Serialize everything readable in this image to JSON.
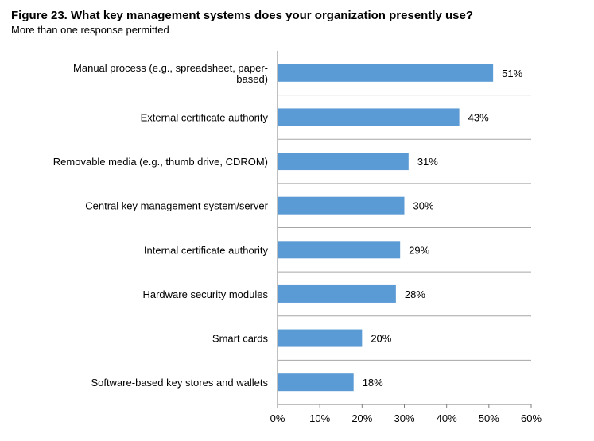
{
  "title": "Figure 23. What key management systems does your organization presently use?",
  "subtitle": "More than one response permitted",
  "colors": {
    "bar": "#5b9bd5",
    "gridline": "#a6a6a6",
    "axis": "#7f7f7f"
  },
  "chart_data": {
    "type": "bar",
    "orientation": "horizontal",
    "categories": [
      [
        "Manual process (e.g., spreadsheet, paper-",
        "based)"
      ],
      [
        "External certificate authority"
      ],
      [
        "Removable media (e.g., thumb drive, CDROM)"
      ],
      [
        "Central key management system/server"
      ],
      [
        "Internal certificate authority"
      ],
      [
        "Hardware security modules"
      ],
      [
        "Smart cards"
      ],
      [
        "Software-based key stores and wallets"
      ]
    ],
    "values": [
      51,
      43,
      31,
      30,
      29,
      28,
      20,
      18
    ],
    "value_labels": [
      "51%",
      "43%",
      "31%",
      "30%",
      "29%",
      "28%",
      "20%",
      "18%"
    ],
    "xlim": [
      0,
      60
    ],
    "xticks": [
      0,
      10,
      20,
      30,
      40,
      50,
      60
    ],
    "xtick_labels": [
      "0%",
      "10%",
      "20%",
      "30%",
      "40%",
      "50%",
      "60%"
    ],
    "grid": "horizontal separators between categories",
    "legend": "none"
  }
}
